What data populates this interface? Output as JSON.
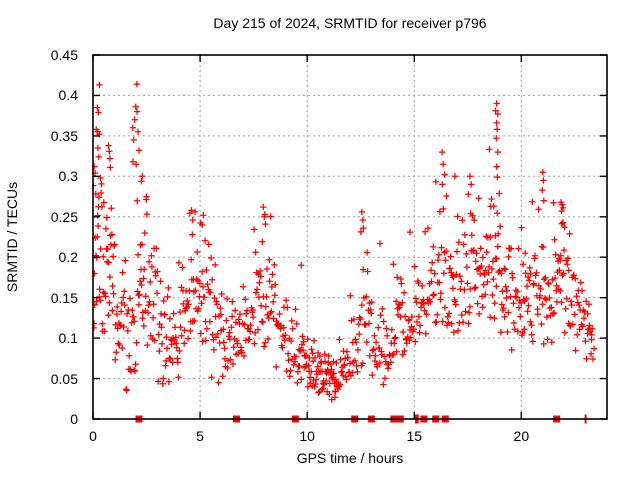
{
  "chart": {
    "title": "Day 215 of 2024, SRMTID for receiver p796",
    "xlabel": "GPS time / hours",
    "ylabel": "SRMTID / TECUs"
  },
  "chart_data": {
    "type": "scatter",
    "title": "Day 215 of 2024, SRMTID for receiver p796",
    "xlabel": "GPS time / hours",
    "ylabel": "SRMTID / TECUs",
    "xlim": [
      0,
      24
    ],
    "ylim": [
      0,
      0.45
    ],
    "xticks": {
      "values": [
        0,
        5,
        10,
        15,
        20
      ],
      "labels": [
        "0",
        "5",
        "10",
        "15",
        "20"
      ]
    },
    "yticks": {
      "values": [
        0,
        0.05,
        0.1,
        0.15,
        0.2,
        0.25,
        0.3,
        0.35,
        0.4,
        0.45
      ],
      "labels": [
        "0",
        "0.05",
        "0.1",
        "0.15",
        "0.2",
        "0.25",
        "0.3",
        "0.35",
        "0.4",
        "0.45"
      ]
    },
    "grid": true,
    "grid_color": "#a0a0a0",
    "border_color": "#000000",
    "legend": "none",
    "marker": "plus",
    "marker_color": "#ff0000",
    "series": [
      {
        "name": "SRMTID",
        "style": "plus-scatter",
        "envelope_bins": [
          [
            0.0,
            0.5,
            0.1,
            0.3,
            26
          ],
          [
            0.5,
            1.0,
            0.1,
            0.28,
            22
          ],
          [
            1.0,
            1.5,
            0.06,
            0.22,
            20
          ],
          [
            1.5,
            2.0,
            0.033,
            0.2,
            19
          ],
          [
            2.0,
            2.5,
            0.07,
            0.32,
            22
          ],
          [
            2.5,
            3.0,
            0.08,
            0.26,
            19
          ],
          [
            3.0,
            3.5,
            0.042,
            0.19,
            19
          ],
          [
            3.5,
            4.0,
            0.04,
            0.17,
            19
          ],
          [
            4.0,
            4.5,
            0.08,
            0.2,
            19
          ],
          [
            4.5,
            5.0,
            0.1,
            0.26,
            20
          ],
          [
            5.0,
            5.5,
            0.09,
            0.25,
            19
          ],
          [
            5.5,
            6.0,
            0.042,
            0.21,
            19
          ],
          [
            6.0,
            6.5,
            0.05,
            0.16,
            17
          ],
          [
            6.5,
            7.0,
            0.06,
            0.15,
            17
          ],
          [
            7.0,
            7.5,
            0.07,
            0.17,
            17
          ],
          [
            7.5,
            8.0,
            0.08,
            0.24,
            19
          ],
          [
            8.0,
            8.5,
            0.08,
            0.26,
            19
          ],
          [
            8.5,
            9.0,
            0.06,
            0.17,
            17
          ],
          [
            9.0,
            9.5,
            0.05,
            0.15,
            17
          ],
          [
            9.5,
            10.0,
            0.04,
            0.12,
            19
          ],
          [
            10.0,
            10.5,
            0.035,
            0.1,
            21
          ],
          [
            10.5,
            11.0,
            0.03,
            0.085,
            23
          ],
          [
            11.0,
            11.5,
            0.028,
            0.08,
            23
          ],
          [
            11.5,
            12.0,
            0.04,
            0.1,
            19
          ],
          [
            12.0,
            12.5,
            0.05,
            0.16,
            17
          ],
          [
            12.5,
            13.0,
            0.06,
            0.24,
            19
          ],
          [
            13.0,
            13.5,
            0.05,
            0.15,
            17
          ],
          [
            13.5,
            14.0,
            0.04,
            0.14,
            17
          ],
          [
            14.0,
            14.5,
            0.07,
            0.2,
            19
          ],
          [
            14.5,
            15.0,
            0.08,
            0.16,
            17
          ],
          [
            15.0,
            15.5,
            0.09,
            0.19,
            17
          ],
          [
            15.5,
            16.0,
            0.1,
            0.24,
            17
          ],
          [
            16.0,
            16.5,
            0.1,
            0.3,
            19
          ],
          [
            16.5,
            17.0,
            0.1,
            0.28,
            19
          ],
          [
            17.0,
            17.5,
            0.1,
            0.26,
            17
          ],
          [
            17.5,
            18.0,
            0.11,
            0.28,
            19
          ],
          [
            18.0,
            18.5,
            0.12,
            0.28,
            20
          ],
          [
            18.5,
            19.0,
            0.12,
            0.34,
            22
          ],
          [
            19.0,
            19.5,
            0.1,
            0.24,
            19
          ],
          [
            19.5,
            20.0,
            0.08,
            0.22,
            17
          ],
          [
            20.0,
            20.5,
            0.1,
            0.24,
            20
          ],
          [
            20.5,
            21.0,
            0.09,
            0.28,
            19
          ],
          [
            21.0,
            21.5,
            0.08,
            0.22,
            17
          ],
          [
            21.5,
            22.0,
            0.12,
            0.27,
            22
          ],
          [
            22.0,
            22.5,
            0.1,
            0.24,
            19
          ],
          [
            22.5,
            23.0,
            0.08,
            0.18,
            17
          ],
          [
            23.0,
            23.4,
            0.07,
            0.15,
            12
          ]
        ],
        "peak_points": [
          [
            0.3,
            0.413
          ],
          [
            0.2,
            0.385
          ],
          [
            0.25,
            0.379
          ],
          [
            0.15,
            0.358
          ],
          [
            0.22,
            0.355
          ],
          [
            0.3,
            0.352
          ],
          [
            0.23,
            0.335
          ],
          [
            0.27,
            0.324
          ],
          [
            0.05,
            0.312
          ],
          [
            0.1,
            0.304
          ],
          [
            0.35,
            0.298
          ],
          [
            0.72,
            0.338
          ],
          [
            0.76,
            0.331
          ],
          [
            0.79,
            0.322
          ],
          [
            0.81,
            0.311
          ],
          [
            2.05,
            0.414
          ],
          [
            2.0,
            0.386
          ],
          [
            2.06,
            0.38
          ],
          [
            1.95,
            0.37
          ],
          [
            1.86,
            0.36
          ],
          [
            2.1,
            0.355
          ],
          [
            1.9,
            0.345
          ],
          [
            2.15,
            0.332
          ],
          [
            1.87,
            0.318
          ],
          [
            2.3,
            0.3
          ],
          [
            2.26,
            0.294
          ],
          [
            2.5,
            0.275
          ],
          [
            4.6,
            0.258
          ],
          [
            4.66,
            0.246
          ],
          [
            5.15,
            0.252
          ],
          [
            5.1,
            0.24
          ],
          [
            7.95,
            0.262
          ],
          [
            8.0,
            0.25
          ],
          [
            8.05,
            0.241
          ],
          [
            9.72,
            0.19
          ],
          [
            11.15,
            0.024
          ],
          [
            11.3,
            0.027
          ],
          [
            12.55,
            0.256
          ],
          [
            12.6,
            0.246
          ],
          [
            12.62,
            0.236
          ],
          [
            13.4,
            0.217
          ],
          [
            14.8,
            0.231
          ],
          [
            16.3,
            0.33
          ],
          [
            16.35,
            0.315
          ],
          [
            16.42,
            0.302
          ],
          [
            16.9,
            0.3
          ],
          [
            17.6,
            0.3
          ],
          [
            17.66,
            0.29
          ],
          [
            18.85,
            0.39
          ],
          [
            18.8,
            0.381
          ],
          [
            18.9,
            0.377
          ],
          [
            18.85,
            0.366
          ],
          [
            18.87,
            0.358
          ],
          [
            18.83,
            0.347
          ],
          [
            18.9,
            0.33
          ],
          [
            18.85,
            0.312
          ],
          [
            18.88,
            0.299
          ],
          [
            21.0,
            0.305
          ],
          [
            21.03,
            0.295
          ],
          [
            20.98,
            0.283
          ],
          [
            21.05,
            0.27
          ],
          [
            21.85,
            0.268
          ],
          [
            21.9,
            0.265
          ],
          [
            21.95,
            0.261
          ],
          [
            21.88,
            0.257
          ],
          [
            23.1,
            0.13
          ],
          [
            23.2,
            0.112
          ],
          [
            23.28,
            0.098
          ]
        ]
      },
      {
        "name": "bottom event marks",
        "style": "filled-square",
        "y": 0,
        "x": [
          2.15,
          6.7,
          9.45,
          12.22,
          13.0,
          14.05,
          14.35,
          15.45,
          16.0,
          16.45,
          21.65
        ],
        "thin_x": [
          15.08,
          15.16,
          23.0
        ]
      }
    ]
  }
}
